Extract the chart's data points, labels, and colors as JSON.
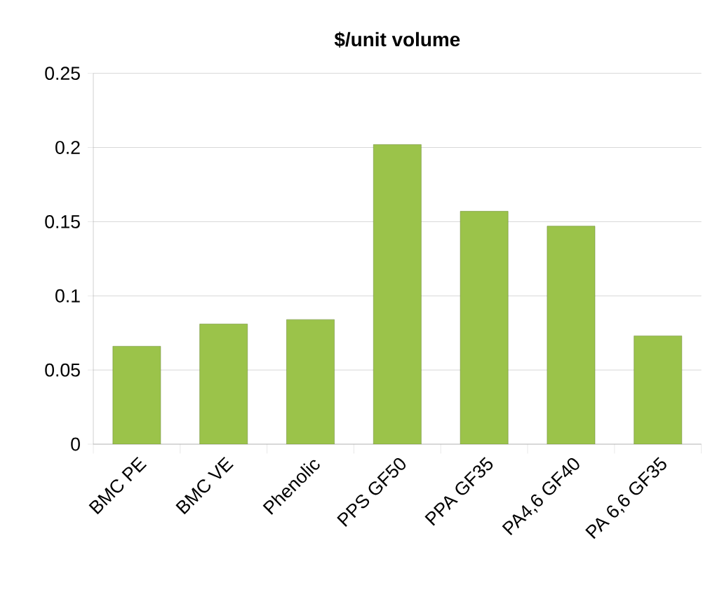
{
  "chart_data": {
    "type": "bar",
    "title": "$/unit volume",
    "categories": [
      "BMC PE",
      "BMC VE",
      "Phenolic",
      "PPS GF50",
      "PPA GF35",
      "PA4,6 GF40",
      "PA 6,6 GF35"
    ],
    "values": [
      0.066,
      0.081,
      0.084,
      0.202,
      0.157,
      0.147,
      0.073
    ],
    "color": "#9bc34a",
    "ylim": [
      0,
      0.25
    ],
    "yticks": [
      0,
      0.05,
      0.1,
      0.15,
      0.2,
      0.25
    ],
    "grid": "y"
  }
}
